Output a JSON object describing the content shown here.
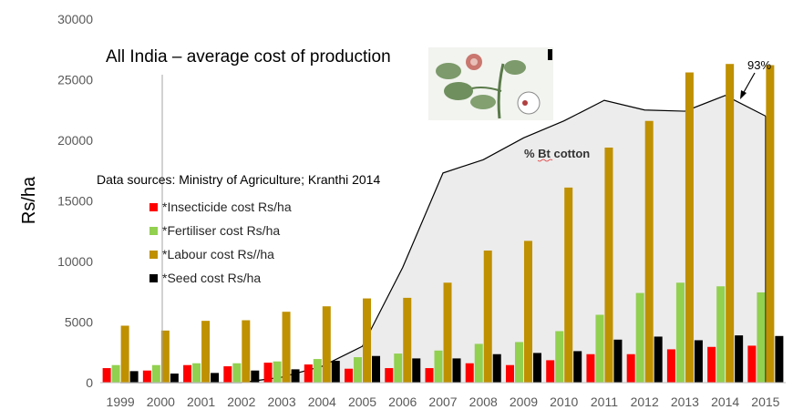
{
  "chart_data": {
    "type": "bar",
    "title": "All India – average cost of production",
    "source_note": "Data sources: Ministry of Agriculture; Kranthi 2014",
    "ylabel": "Rs/ha",
    "ylim": [
      0,
      30000
    ],
    "yticks": [
      0,
      5000,
      10000,
      15000,
      20000,
      25000,
      30000
    ],
    "grid": false,
    "legend_position": "left-center",
    "categories": [
      "1999",
      "2000",
      "2001",
      "2002",
      "2003",
      "2004",
      "2005",
      "2006",
      "2007",
      "2008",
      "2009",
      "2010",
      "2011",
      "2012",
      "2013",
      "2014",
      "2015"
    ],
    "series": [
      {
        "name": "*Insecticide cost Rs/ha",
        "color": "#ff0000",
        "values": [
          1200,
          1000,
          1450,
          1350,
          1650,
          1500,
          1150,
          1200,
          1200,
          1600,
          1450,
          1850,
          2350,
          2350,
          2750,
          2950,
          3050
        ]
      },
      {
        "name": "*Fertiliser cost Rs/ha",
        "color": "#92d050",
        "values": [
          1450,
          1450,
          1600,
          1600,
          1750,
          1950,
          2100,
          2400,
          2650,
          3200,
          3350,
          4250,
          5600,
          7400,
          8250,
          7950,
          7450
        ]
      },
      {
        "name": "*Labour cost Rs//ha",
        "color": "#bf9000",
        "values": [
          4700,
          4300,
          5100,
          5150,
          5850,
          6300,
          6950,
          7000,
          8250,
          10900,
          11700,
          16100,
          19400,
          21600,
          25600,
          26300,
          26200
        ]
      },
      {
        "name": "*Seed cost Rs/ha",
        "color": "#000000",
        "values": [
          950,
          750,
          800,
          1000,
          1100,
          1800,
          2200,
          2000,
          2000,
          2350,
          2450,
          2600,
          3550,
          3800,
          3500,
          3900,
          3850
        ]
      }
    ],
    "area_series": {
      "name": "% Bt cotton",
      "values": [
        0,
        0,
        0,
        0,
        450,
        1350,
        3000,
        9500,
        17300,
        18400,
        20200,
        21600,
        23300,
        22500,
        22400,
        23700,
        22000
      ],
      "fill": "#ececec",
      "line_color": "#000000"
    },
    "annotations": [
      {
        "text": "93%",
        "points_to_category": "2014"
      },
      {
        "text": "% Bt cotton"
      }
    ]
  }
}
